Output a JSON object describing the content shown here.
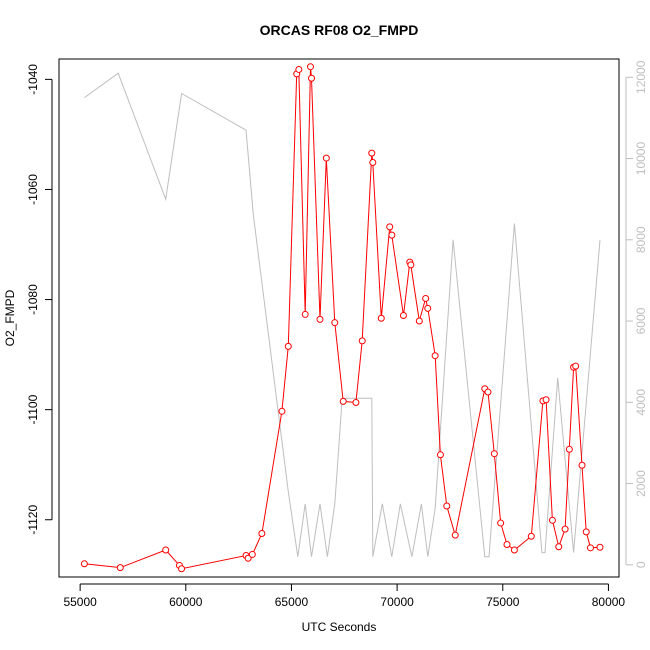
{
  "chart_data": {
    "type": "line",
    "title": "ORCAS RF08 O2_FMPD",
    "xlabel": "UTC Seconds",
    "ylabel": "O2_FMPD",
    "xlim": [
      54000,
      80500
    ],
    "ylim": [
      -1130.4,
      -1036.3
    ],
    "y2lim": [
      -300,
      12450
    ],
    "x_ticks": [
      55000,
      60000,
      65000,
      70000,
      75000,
      80000
    ],
    "y_ticks": [
      -1120,
      -1100,
      -1080,
      -1060,
      -1040
    ],
    "y2_ticks": [
      0,
      2000,
      4000,
      6000,
      8000,
      10000,
      12000
    ],
    "grid": false,
    "colors": {
      "primary": "#ff0000",
      "secondary": "#bebebe",
      "axis": "#000000"
    },
    "series": [
      {
        "axis": "left",
        "style": "line+markers",
        "x": [
          55200,
          56900,
          59050,
          59700,
          59800,
          62850,
          62950,
          63150,
          63600,
          64550,
          64850,
          65250,
          65350,
          65650,
          65900,
          65950,
          66350,
          66650,
          67050,
          67450,
          68050,
          68350,
          68800,
          68850,
          69250,
          69650,
          69750,
          70300,
          70600,
          70650,
          71050,
          71350,
          71450,
          71800,
          72050,
          72350,
          72750,
          74150,
          74300,
          74600,
          74900,
          75200,
          75550,
          76350,
          76900,
          77050,
          77350,
          77650,
          77950,
          78150,
          78350,
          78450,
          78750,
          78950,
          79150,
          79600
        ],
        "y": [
          -1128,
          -1128.7,
          -1125.5,
          -1128.3,
          -1128.9,
          -1126.5,
          -1127,
          -1126.3,
          -1122.5,
          -1100.3,
          -1088.5,
          -1039,
          -1038.2,
          -1082.7,
          -1037.7,
          -1039.8,
          -1083.6,
          -1054.3,
          -1084.2,
          -1098.5,
          -1098.7,
          -1087.5,
          -1053.4,
          -1055.1,
          -1083.4,
          -1066.8,
          -1068.3,
          -1082.9,
          -1073.2,
          -1073.7,
          -1083.9,
          -1079.8,
          -1081.6,
          -1090.2,
          -1108.2,
          -1117.5,
          -1122.8,
          -1096.2,
          -1096.8,
          -1108,
          -1120.6,
          -1124.5,
          -1125.5,
          -1123,
          -1098.4,
          -1098.2,
          -1120.1,
          -1124.9,
          -1121.7,
          -1107.2,
          -1092.3,
          -1092.1,
          -1110.1,
          -1122.2,
          -1125.1,
          -1125
        ]
      },
      {
        "axis": "right",
        "style": "line",
        "x": [
          55200,
          56800,
          59050,
          59800,
          62850,
          63200,
          64850,
          65300,
          65650,
          65950,
          66350,
          66700,
          67050,
          67400,
          68100,
          68800,
          68850,
          69300,
          69750,
          70150,
          70700,
          71150,
          71450,
          71800,
          72650,
          74150,
          74350,
          75550,
          76850,
          77000,
          77600,
          78350,
          79600
        ],
        "y": [
          11500,
          12100,
          9000,
          11600,
          10700,
          8600,
          1800,
          200,
          1500,
          200,
          1500,
          200,
          1500,
          4100,
          4100,
          4100,
          200,
          1500,
          200,
          1500,
          200,
          1500,
          200,
          1400,
          8000,
          200,
          200,
          8400,
          300,
          300,
          4600,
          300,
          8000
        ]
      }
    ]
  }
}
